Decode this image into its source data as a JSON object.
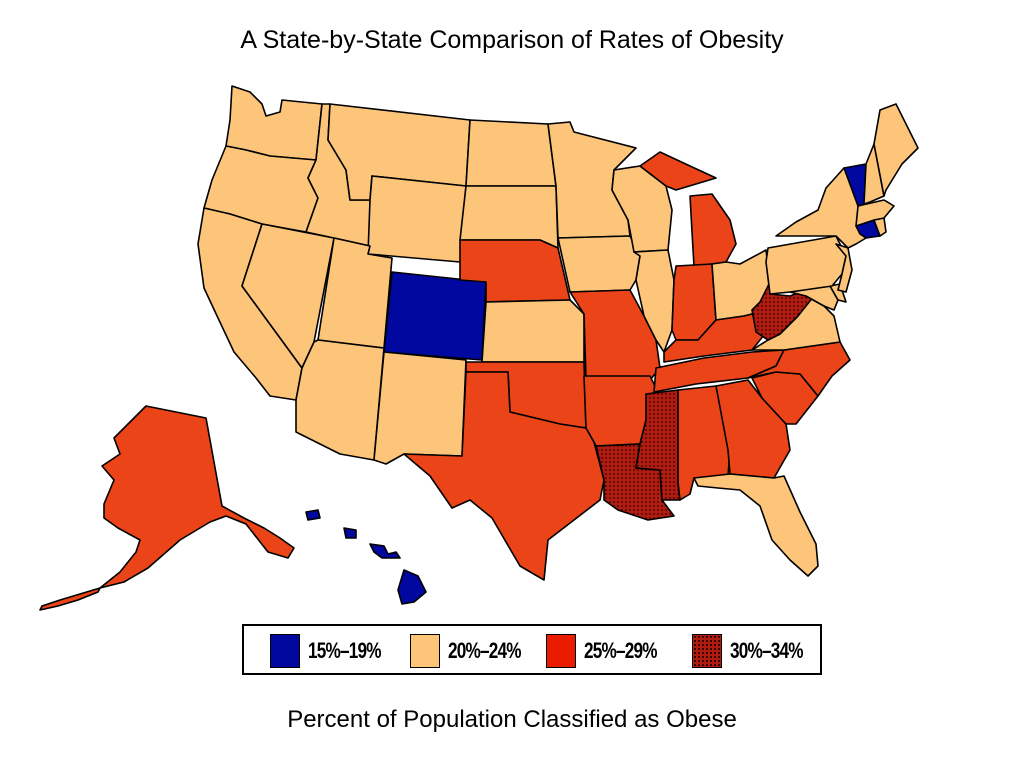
{
  "title": "A State-by-State Comparison of Rates of Obesity",
  "caption": "Percent of Population Classified as Obese",
  "colors": {
    "c15_19": "#0008a0",
    "c20_24": "#fdc57a",
    "c25_29": "#ea4418",
    "c30_34": "#b01c10",
    "border": "#000000"
  },
  "legend": [
    {
      "label": "15%–19%",
      "color": "#0008a0",
      "pattern": "solid"
    },
    {
      "label": "20%–24%",
      "color": "#fdc57a",
      "pattern": "solid"
    },
    {
      "label": "25%–29%",
      "color": "#ea1c00",
      "pattern": "solid"
    },
    {
      "label": "30%–34%",
      "color": "#b01c10",
      "pattern": "dotted"
    }
  ],
  "state_categories": {
    "WA": "20-24",
    "OR": "20-24",
    "CA": "20-24",
    "NV": "20-24",
    "ID": "20-24",
    "MT": "20-24",
    "WY": "20-24",
    "UT": "20-24",
    "AZ": "20-24",
    "CO": "15-19",
    "NM": "20-24",
    "ND": "20-24",
    "SD": "20-24",
    "NE": "25-29",
    "KS": "20-24",
    "OK": "25-29",
    "TX": "25-29",
    "MN": "20-24",
    "IA": "20-24",
    "MO": "25-29",
    "AR": "25-29",
    "LA": "30-34",
    "WI": "20-24",
    "IL": "20-24",
    "MI": "25-29",
    "IN": "25-29",
    "OH": "20-24",
    "KY": "25-29",
    "TN": "25-29",
    "MS": "30-34",
    "AL": "25-29",
    "GA": "25-29",
    "FL": "20-24",
    "SC": "25-29",
    "NC": "25-29",
    "VA": "20-24",
    "WV": "30-34",
    "MD": "20-24",
    "DE": "20-24",
    "PA": "20-24",
    "NJ": "20-24",
    "NY": "20-24",
    "CT": "15-19",
    "RI": "20-24",
    "MA": "20-24",
    "VT": "15-19",
    "NH": "20-24",
    "ME": "20-24",
    "AK": "25-29",
    "HI": "15-19"
  }
}
